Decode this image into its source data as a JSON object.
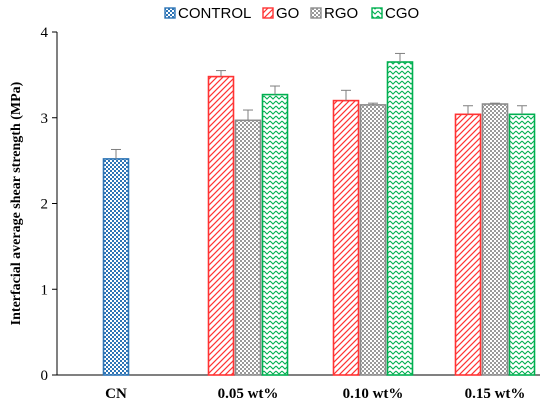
{
  "chart_data": {
    "type": "bar",
    "title": "",
    "xlabel": "",
    "ylabel": "Interfacial average shear strength (MPa)",
    "ylim": [
      0,
      4
    ],
    "yticks": [
      0,
      1,
      2,
      3,
      4
    ],
    "grid": false,
    "legend_position": "top",
    "groups": [
      {
        "label": "CN",
        "bars": [
          {
            "series": "CONTROL",
            "value": 2.52,
            "error": 0.11
          }
        ]
      },
      {
        "label": "0.05 wt%",
        "bars": [
          {
            "series": "GO",
            "value": 3.48,
            "error": 0.07
          },
          {
            "series": "RGO",
            "value": 2.97,
            "error": 0.12
          },
          {
            "series": "CGO",
            "value": 3.27,
            "error": 0.1
          }
        ]
      },
      {
        "label": "0.10 wt%",
        "bars": [
          {
            "series": "GO",
            "value": 3.2,
            "error": 0.12
          },
          {
            "series": "RGO",
            "value": 3.15,
            "error": 0.02
          },
          {
            "series": "CGO",
            "value": 3.65,
            "error": 0.1
          }
        ]
      },
      {
        "label": "0.15 wt%",
        "bars": [
          {
            "series": "GO",
            "value": 3.04,
            "error": 0.1
          },
          {
            "series": "RGO",
            "value": 3.16,
            "error": 0.01
          },
          {
            "series": "CGO",
            "value": 3.04,
            "error": 0.1
          }
        ]
      }
    ],
    "series": [
      {
        "name": "CONTROL",
        "color": "#2e75b6",
        "pattern": "checker"
      },
      {
        "name": "GO",
        "color": "#ff3333",
        "pattern": "diagonal"
      },
      {
        "name": "RGO",
        "color": "#8c8c8c",
        "pattern": "checker"
      },
      {
        "name": "CGO",
        "color": "#00b050",
        "pattern": "zigzag"
      }
    ]
  }
}
